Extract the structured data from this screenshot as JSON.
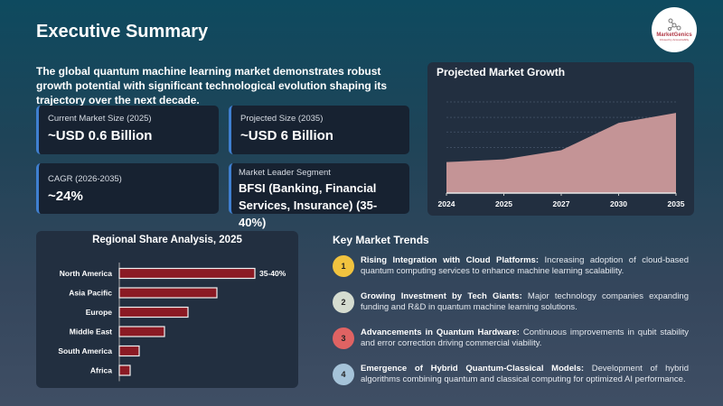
{
  "header": {
    "title": "Executive Summary",
    "logo_text": "MarketGenics",
    "logo_tagline": "Infused by Accountabilty"
  },
  "intro": "The global quantum machine learning market demonstrates robust growth potential with significant technological evolution shaping its trajectory over the next decade.",
  "cards": [
    {
      "label": "Current Market Size (2025)",
      "value": "~USD 0.6 Billion"
    },
    {
      "label": "Projected Size (2035)",
      "value": "~USD 6 Billion"
    },
    {
      "label": "CAGR (2026-2035)",
      "value": "~24%"
    },
    {
      "label": "Market Leader Segment",
      "value": "BFSI (Banking, Financial Services, Insurance) (35-40%)"
    }
  ],
  "colors": {
    "accent": "#3f7fd0",
    "area_fill": "#c49496",
    "bar_fill": "#8b1a24",
    "card_bg": "#172231"
  },
  "chart_data": [
    {
      "type": "area",
      "title": "Projected Market Growth",
      "categories": [
        "2024",
        "2025",
        "2027",
        "2030",
        "2035"
      ],
      "values": [
        34,
        37,
        47,
        77,
        88
      ],
      "ylim": [
        0,
        100
      ],
      "grid": true,
      "y_axis_labels": "none"
    },
    {
      "type": "bar",
      "orientation": "horizontal",
      "title": "Regional Share Analysis, 2025",
      "categories": [
        "North America",
        "Asia Pacific",
        "Europe",
        "Middle East",
        "South America",
        "Africa"
      ],
      "values": [
        37.5,
        27,
        19,
        12.5,
        5.5,
        3
      ],
      "data_labels": [
        "35-40%",
        "",
        "",
        "",
        "",
        ""
      ],
      "unit": "%"
    }
  ],
  "trends": {
    "title": "Key Market Trends",
    "items": [
      {
        "num": "1",
        "color": "#f1c33f",
        "head": "Rising Integration with Cloud Platforms:",
        "body": " Increasing adoption of cloud-based quantum computing services to enhance machine learning scalability."
      },
      {
        "num": "2",
        "color": "#d5dcd0",
        "head": "Growing Investment by Tech Giants:",
        "body": " Major technology companies expanding funding and R&D in quantum machine learning solutions."
      },
      {
        "num": "3",
        "color": "#e06363",
        "head": "Advancements in Quantum Hardware:",
        "body": " Continuous improvements in qubit stability and error correction driving commercial viability."
      },
      {
        "num": "4",
        "color": "#a5c3d9",
        "head": "Emergence of Hybrid Quantum-Classical Models:",
        "body": " Development of hybrid algorithms combining quantum and classical computing for optimized AI performance."
      }
    ]
  }
}
